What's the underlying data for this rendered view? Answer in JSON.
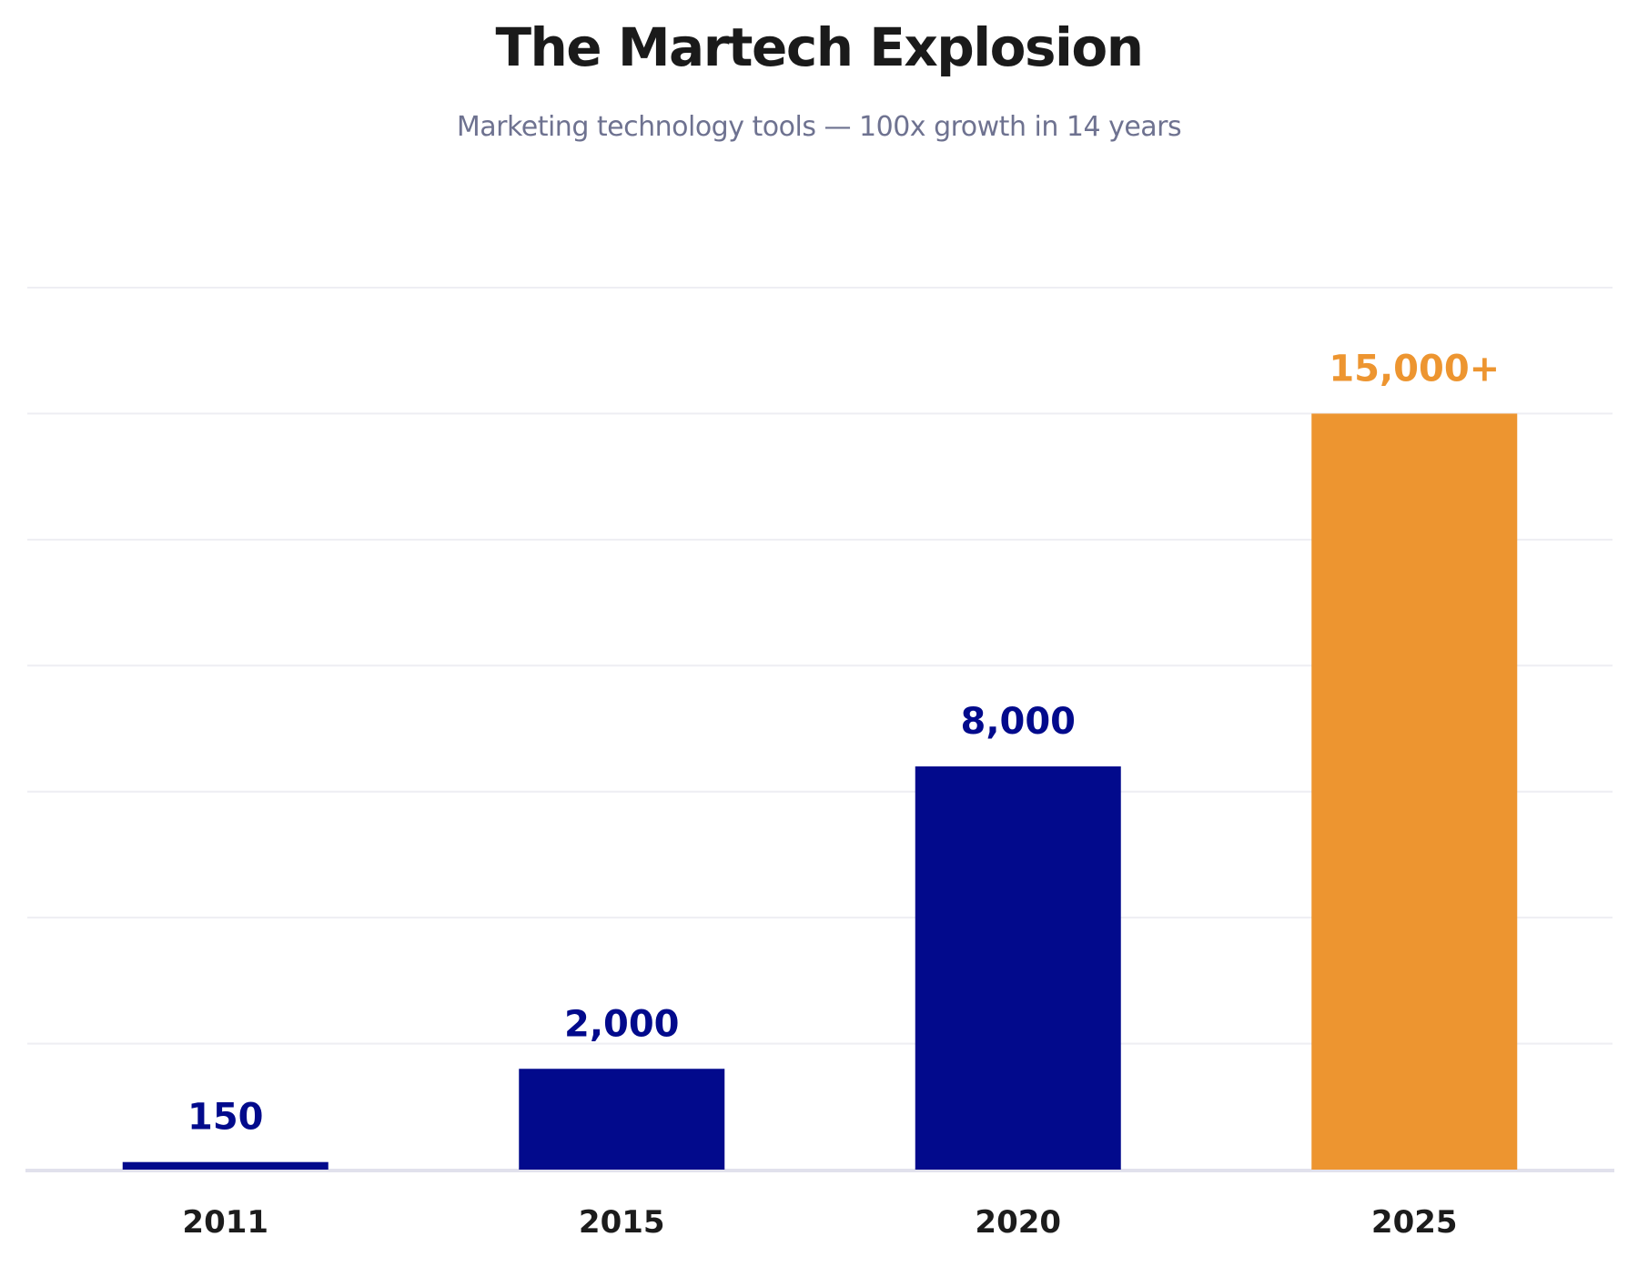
{
  "chart_data": {
    "type": "bar",
    "title": "The Martech Explosion",
    "subtitle": "Marketing technology tools — 100x growth in 14 years",
    "categories": [
      "2011",
      "2015",
      "2020",
      "2025"
    ],
    "values": [
      150,
      2000,
      8000,
      15000
    ],
    "data_labels": [
      "150",
      "2,000",
      "8,000",
      "15,000+"
    ],
    "bar_colors": [
      "#020a8c",
      "#020a8c",
      "#020a8c",
      "#ed9530"
    ],
    "label_colors": [
      "#020a8c",
      "#020a8c",
      "#020a8c",
      "#ed9530"
    ],
    "xlabel": "",
    "ylabel": "",
    "ylim": [
      0,
      17500
    ],
    "grid": true,
    "grid_step": 2500,
    "y_tick_labels_shown": false,
    "legend": "none"
  }
}
